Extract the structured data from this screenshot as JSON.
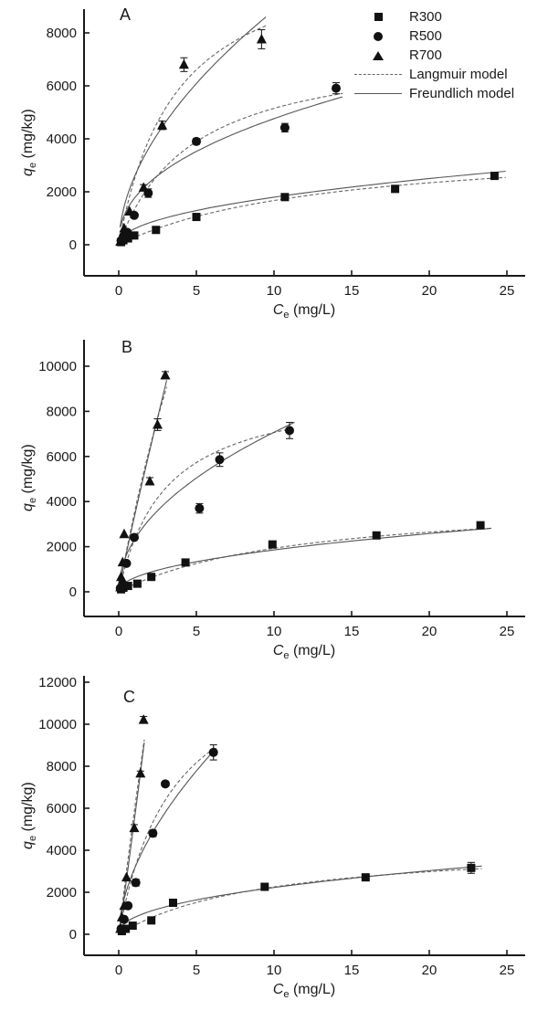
{
  "figure": {
    "background": "#ffffff",
    "axis_color": "#1a1a1a",
    "langmuir_color": "#666666",
    "freundlich_color": "#555555",
    "marker_color": "#111111"
  },
  "legend": {
    "items": [
      {
        "label": "R300",
        "marker": "square"
      },
      {
        "label": "R500",
        "marker": "circle"
      },
      {
        "label": "R700",
        "marker": "triangle"
      },
      {
        "label": "Langmuir model",
        "line": "dashed"
      },
      {
        "label": "Freundlich model",
        "line": "solid"
      }
    ]
  },
  "axis_titles": {
    "x_var": "C",
    "y_var": "q",
    "sub": "e",
    "x_unit": " (mg/L)",
    "y_unit": " (mg/kg)"
  },
  "chart_data": [
    {
      "type": "scatter",
      "panel_label": "A",
      "xlabel": "Ce (mg/L)",
      "ylabel": "qe (mg/kg)",
      "xlim": [
        0,
        25
      ],
      "ylim": [
        0,
        8000
      ],
      "x_ticks": [
        0,
        5,
        10,
        15,
        20,
        25
      ],
      "y_ticks": [
        0,
        2000,
        4000,
        6000,
        8000
      ],
      "grid": false,
      "legend_position": "top-right",
      "series": [
        {
          "name": "R300",
          "marker": "square",
          "points": [
            [
              0.15,
              100,
              0
            ],
            [
              0.3,
              170,
              0
            ],
            [
              0.6,
              240,
              0
            ],
            [
              1.0,
              350,
              0
            ],
            [
              2.4,
              560,
              0
            ],
            [
              5.0,
              1050,
              60
            ],
            [
              10.7,
              1800,
              90
            ],
            [
              17.8,
              2110,
              130
            ],
            [
              24.2,
              2600,
              110
            ]
          ],
          "langmuir": {
            "qm": 3900,
            "kl": 0.075
          },
          "freundlich": {
            "kf": 600,
            "n": 2.1
          }
        },
        {
          "name": "R500",
          "marker": "circle",
          "points": [
            [
              0.15,
              160,
              0
            ],
            [
              0.3,
              320,
              0
            ],
            [
              0.55,
              470,
              0
            ],
            [
              1.0,
              1110,
              0
            ],
            [
              1.9,
              1950,
              160
            ],
            [
              5.0,
              3900,
              110
            ],
            [
              10.7,
              4420,
              160
            ],
            [
              14.0,
              5910,
              210
            ]
          ],
          "langmuir": {
            "qm": 7600,
            "kl": 0.21
          },
          "freundlich": {
            "kf": 1750,
            "n": 2.3
          }
        },
        {
          "name": "R700",
          "marker": "triangle",
          "points": [
            [
              0.1,
              120,
              0
            ],
            [
              0.2,
              280,
              0
            ],
            [
              0.35,
              620,
              0
            ],
            [
              0.7,
              1260,
              0
            ],
            [
              1.6,
              2160,
              110
            ],
            [
              2.8,
              4510,
              160
            ],
            [
              4.2,
              6800,
              260
            ],
            [
              9.2,
              7760,
              360
            ]
          ],
          "langmuir": {
            "qm": 11500,
            "kl": 0.27
          },
          "freundlich": {
            "kf": 2550,
            "n": 1.85
          }
        }
      ]
    },
    {
      "type": "scatter",
      "panel_label": "B",
      "xlabel": "Ce (mg/L)",
      "ylabel": "qe (mg/kg)",
      "xlim": [
        0,
        25
      ],
      "ylim": [
        0,
        10000
      ],
      "x_ticks": [
        0,
        5,
        10,
        15,
        20,
        25
      ],
      "y_ticks": [
        0,
        2000,
        4000,
        6000,
        8000,
        10000
      ],
      "grid": false,
      "series": [
        {
          "name": "R300",
          "marker": "square",
          "points": [
            [
              0.15,
              110,
              0
            ],
            [
              0.3,
              180,
              0
            ],
            [
              0.6,
              260,
              0
            ],
            [
              1.2,
              360,
              0
            ],
            [
              2.1,
              660,
              0
            ],
            [
              4.3,
              1300,
              80
            ],
            [
              9.9,
              2100,
              90
            ],
            [
              16.6,
              2500,
              100
            ],
            [
              23.3,
              2950,
              110
            ]
          ],
          "langmuir": {
            "qm": 4200,
            "kl": 0.085
          },
          "freundlich": {
            "kf": 620,
            "n": 2.1
          }
        },
        {
          "name": "R500",
          "marker": "circle",
          "points": [
            [
              0.1,
              160,
              0
            ],
            [
              0.25,
              360,
              0
            ],
            [
              0.5,
              1260,
              0
            ],
            [
              1.0,
              2410,
              0
            ],
            [
              5.2,
              3700,
              210
            ],
            [
              6.5,
              5860,
              300
            ],
            [
              11.0,
              7150,
              360
            ]
          ],
          "langmuir": {
            "qm": 9200,
            "kl": 0.33
          },
          "freundlich": {
            "kf": 2300,
            "n": 2.05
          }
        },
        {
          "name": "R700",
          "marker": "triangle",
          "points": [
            [
              0.1,
              200,
              0
            ],
            [
              0.15,
              660,
              0
            ],
            [
              0.25,
              1310,
              0
            ],
            [
              0.35,
              2560,
              0
            ],
            [
              2.0,
              4900,
              160
            ],
            [
              2.5,
              7410,
              260
            ],
            [
              3.0,
              9600,
              160
            ]
          ],
          "langmuir": {
            "qm": 40000,
            "kl": 0.095
          },
          "freundlich": {
            "kf": 3300,
            "n": 1.08
          }
        }
      ]
    },
    {
      "type": "scatter",
      "panel_label": "C",
      "xlabel": "Ce (mg/L)",
      "ylabel": "qe (mg/kg)",
      "xlim": [
        0,
        25
      ],
      "ylim": [
        0,
        12000
      ],
      "x_ticks": [
        0,
        5,
        10,
        15,
        20,
        25
      ],
      "y_ticks": [
        0,
        2000,
        4000,
        6000,
        8000,
        10000,
        12000
      ],
      "grid": false,
      "series": [
        {
          "name": "R300",
          "marker": "square",
          "points": [
            [
              0.2,
              150,
              0
            ],
            [
              0.45,
              260,
              0
            ],
            [
              0.9,
              410,
              0
            ],
            [
              2.1,
              660,
              0
            ],
            [
              3.5,
              1500,
              90
            ],
            [
              9.4,
              2260,
              130
            ],
            [
              15.9,
              2710,
              160
            ],
            [
              22.7,
              3160,
              260
            ]
          ],
          "langmuir": {
            "qm": 4400,
            "kl": 0.105
          },
          "freundlich": {
            "kf": 800,
            "n": 2.25
          }
        },
        {
          "name": "R500",
          "marker": "circle",
          "points": [
            [
              0.15,
              260,
              0
            ],
            [
              0.35,
              710,
              0
            ],
            [
              0.6,
              1360,
              0
            ],
            [
              1.1,
              2460,
              160
            ],
            [
              2.2,
              4810,
              160
            ],
            [
              3.0,
              7160,
              110
            ],
            [
              6.1,
              8660,
              360
            ]
          ],
          "langmuir": {
            "qm": 14000,
            "kl": 0.28
          },
          "freundlich": {
            "kf": 3100,
            "n": 1.75
          }
        },
        {
          "name": "R700",
          "marker": "triangle",
          "points": [
            [
              0.1,
              260,
              0
            ],
            [
              0.2,
              810,
              0
            ],
            [
              0.35,
              1360,
              0
            ],
            [
              0.5,
              2710,
              0
            ],
            [
              1.0,
              5060,
              160
            ],
            [
              1.4,
              7660,
              110
            ],
            [
              1.6,
              10210,
              160
            ]
          ],
          "langmuir": {
            "qm": 100000,
            "kl": 0.062
          },
          "freundlich": {
            "kf": 5400,
            "n": 0.95
          }
        }
      ]
    }
  ]
}
